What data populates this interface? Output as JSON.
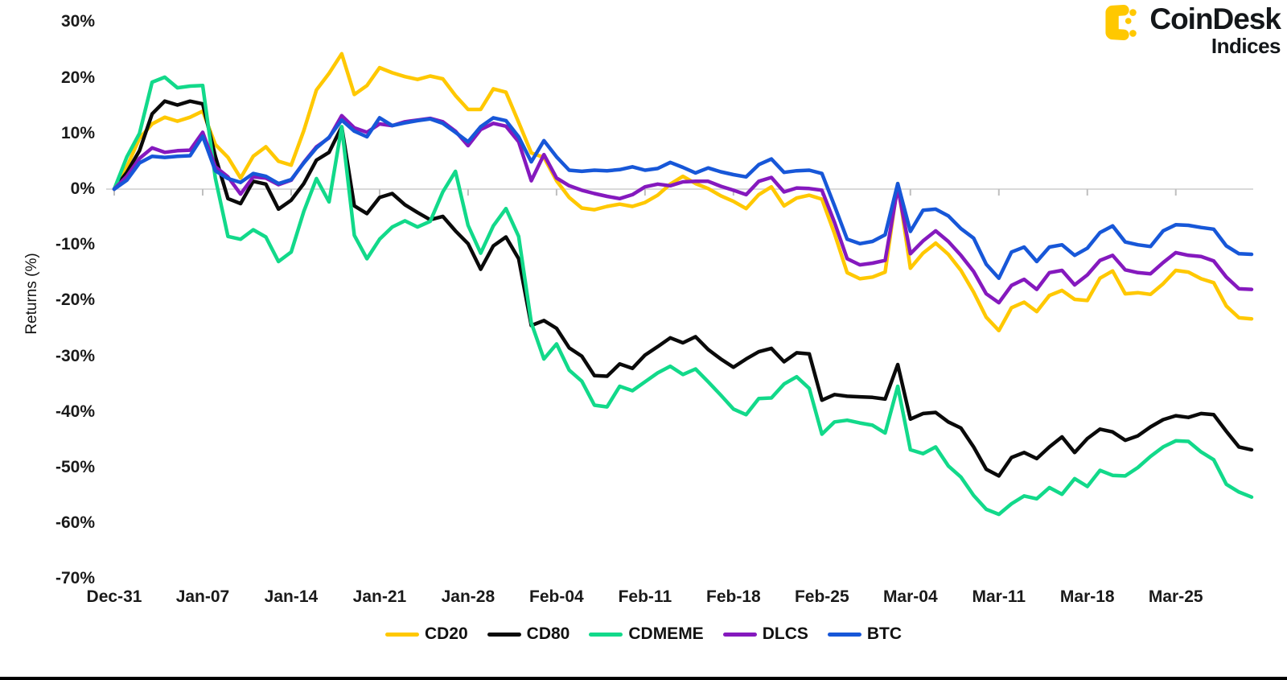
{
  "header": {
    "brand": "CoinDesk",
    "brand_sub": "Indices",
    "logo_color": "#FFC800"
  },
  "axis_style": {
    "zero_line_color": "#d9d9d9",
    "tick_color": "#bfbfbf",
    "label_color": "#1a1a1a"
  },
  "chart_data": {
    "type": "line",
    "title": "",
    "xlabel": "",
    "ylabel": "Returns (%)",
    "ylim": [
      -70,
      30
    ],
    "y_ticks": [
      30,
      20,
      10,
      0,
      -10,
      -20,
      -30,
      -40,
      -50,
      -60,
      -70
    ],
    "y_tick_suffix": "%",
    "grid": "zero-line-only",
    "legend_position": "bottom",
    "x_tick_interval_days": 7,
    "categories": [
      "Dec-31",
      "Jan-07",
      "Jan-14",
      "Jan-21",
      "Jan-28",
      "Feb-04",
      "Feb-11",
      "Feb-18",
      "Feb-25",
      "Mar-04",
      "Mar-11",
      "Mar-18",
      "Mar-25"
    ],
    "points_per_series": 91,
    "series": [
      {
        "name": "CD20",
        "color": "#FFC800",
        "values": [
          0,
          4,
          9.1,
          11.7,
          12.9,
          12.2,
          12.9,
          14,
          8,
          5.7,
          2,
          5.9,
          7.6,
          5,
          4.3,
          10.5,
          17.8,
          20.8,
          24.3,
          17,
          18.6,
          21.8,
          20.9,
          20.2,
          19.7,
          20.3,
          19.8,
          16.8,
          14.3,
          14.3,
          18,
          17.4,
          12,
          6.5,
          5.7,
          1.5,
          -1.5,
          -3.4,
          -3.7,
          -3.1,
          -2.7,
          -3.1,
          -2.4,
          -1.1,
          0.9,
          2.3,
          1,
          0.1,
          -1.2,
          -2.2,
          -3.5,
          -1,
          0.4,
          -3,
          -1.6,
          -1.1,
          -1.8,
          -8,
          -15,
          -16.1,
          -15.8,
          -14.9,
          1,
          -14.2,
          -11.5,
          -9.7,
          -11.7,
          -14.6,
          -18.5,
          -23,
          -25.4,
          -21.3,
          -20.3,
          -22,
          -19.1,
          -18.2,
          -19.8,
          -20,
          -16,
          -14.7,
          -18.8,
          -18.6,
          -18.9,
          -17,
          -14.6,
          -14.9,
          -16.1,
          -16.8,
          -21,
          -23.1,
          -23.3
        ]
      },
      {
        "name": "CD80",
        "color": "#0a0a0a",
        "values": [
          0,
          3,
          6.9,
          13.5,
          15.8,
          15.1,
          15.8,
          15.3,
          5.9,
          -1.7,
          -2.6,
          1.4,
          0.9,
          -3.6,
          -2,
          1,
          5.2,
          6.6,
          11.2,
          -3,
          -4.4,
          -1.5,
          -0.8,
          -2.8,
          -4.2,
          -5.5,
          -4.9,
          -7.5,
          -9.8,
          -14.4,
          -10.2,
          -8.6,
          -12.5,
          -24.5,
          -23.6,
          -25,
          -28.5,
          -30,
          -33.5,
          -33.6,
          -31.4,
          -32.2,
          -29.8,
          -28.3,
          -26.7,
          -27.6,
          -26.5,
          -28.8,
          -30.5,
          -32,
          -30.5,
          -29.2,
          -28.6,
          -31,
          -29.4,
          -29.6,
          -37.9,
          -36.9,
          -37.2,
          -37.3,
          -37.4,
          -37.7,
          -31.5,
          -41.3,
          -40.3,
          -40.1,
          -41.8,
          -42.9,
          -46.3,
          -50.3,
          -51.5,
          -48.2,
          -47.3,
          -48.4,
          -46.3,
          -44.5,
          -47.3,
          -44.8,
          -43.1,
          -43.6,
          -45.1,
          -44.3,
          -42.7,
          -41.4,
          -40.7,
          -41,
          -40.3,
          -40.5,
          -43.5,
          -46.3,
          -46.8
        ]
      },
      {
        "name": "CDMEME",
        "color": "#12d98a",
        "values": [
          0,
          5.8,
          10,
          19.2,
          20.1,
          18.2,
          18.5,
          18.6,
          2,
          -8.5,
          -9,
          -7.3,
          -8.6,
          -13,
          -11.3,
          -4,
          1.9,
          -2.3,
          11.2,
          -8.3,
          -12.5,
          -9,
          -6.8,
          -5.7,
          -6.8,
          -5.8,
          -0.5,
          3.2,
          -6.5,
          -11.5,
          -6.6,
          -3.5,
          -8.5,
          -24,
          -30.5,
          -27.8,
          -32.5,
          -34.5,
          -38.8,
          -39.1,
          -35.4,
          -36.2,
          -34.6,
          -33,
          -31.8,
          -33.3,
          -32.3,
          -34.6,
          -37,
          -39.5,
          -40.5,
          -37.6,
          -37.5,
          -35,
          -33.7,
          -35.8,
          -44,
          -41.8,
          -41.5,
          -42,
          -42.4,
          -43.8,
          -35.4,
          -46.8,
          -47.5,
          -46.3,
          -49.7,
          -51.7,
          -55,
          -57.5,
          -58.4,
          -56.5,
          -55.1,
          -55.6,
          -53.6,
          -54.8,
          -52,
          -53.4,
          -50.5,
          -51.4,
          -51.5,
          -50,
          -48,
          -46.3,
          -45.2,
          -45.3,
          -47.2,
          -48.6,
          -53,
          -54.4,
          -55.3
        ]
      },
      {
        "name": "DLCS",
        "color": "#8519be",
        "values": [
          0,
          2.3,
          5.5,
          7.4,
          6.6,
          6.9,
          7,
          10.2,
          4,
          2.2,
          -0.9,
          2.2,
          2,
          0.8,
          1.6,
          4.8,
          7.6,
          9.2,
          13.2,
          11,
          10.2,
          11.7,
          11.4,
          12.1,
          12.4,
          12.7,
          12.1,
          10.4,
          7.8,
          10.7,
          11.8,
          11.3,
          8.5,
          1.5,
          6.2,
          2,
          0.6,
          -0.2,
          -0.8,
          -1.3,
          -1.7,
          -1,
          0.4,
          0.9,
          0.6,
          1.3,
          1.4,
          1.4,
          0.5,
          -0.2,
          -1,
          1.4,
          2.1,
          -0.5,
          0.2,
          0.1,
          -0.2,
          -6,
          -12.5,
          -13.6,
          -13.3,
          -12.8,
          0.3,
          -11.6,
          -9.3,
          -7.5,
          -9.4,
          -11.9,
          -14.8,
          -18.8,
          -20.4,
          -17.3,
          -16.2,
          -18,
          -15,
          -14.6,
          -17.2,
          -15.4,
          -12.8,
          -11.9,
          -14.5,
          -15,
          -15.2,
          -13.2,
          -11.4,
          -11.9,
          -12.1,
          -12.9,
          -15.8,
          -17.9,
          -18
        ]
      },
      {
        "name": "BTC",
        "color": "#1757d8",
        "values": [
          0,
          1.6,
          4.7,
          5.9,
          5.7,
          5.9,
          6,
          9.5,
          3.3,
          1.9,
          1.2,
          2.8,
          2.3,
          1,
          1.7,
          4.7,
          7.4,
          9.3,
          12.4,
          10.4,
          9.4,
          12.8,
          11.4,
          11.9,
          12.3,
          12.6,
          11.8,
          10.2,
          8.5,
          11.2,
          12.8,
          12.3,
          9.4,
          4.9,
          8.7,
          5.8,
          3.4,
          3.2,
          3.4,
          3.3,
          3.5,
          4,
          3.4,
          3.7,
          4.8,
          3.9,
          2.9,
          3.8,
          3.1,
          2.6,
          2.2,
          4.4,
          5.4,
          3,
          3.3,
          3.4,
          2.8,
          -3,
          -9,
          -9.8,
          -9.4,
          -8.2,
          1,
          -7.6,
          -3.8,
          -3.6,
          -4.8,
          -7.1,
          -8.8,
          -13.5,
          -16,
          -11.3,
          -10.4,
          -13,
          -10.4,
          -10,
          -11.9,
          -10.6,
          -7.8,
          -6.6,
          -9.5,
          -10,
          -10.3,
          -7.5,
          -6.4,
          -6.5,
          -6.9,
          -7.2,
          -10.2,
          -11.6,
          -11.7
        ]
      }
    ]
  }
}
